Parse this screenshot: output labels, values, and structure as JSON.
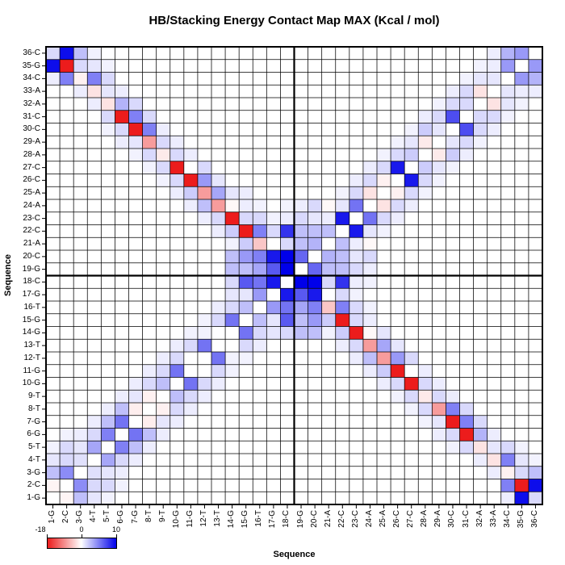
{
  "title": "HB/Stacking Energy Contact Map MAX (Kcal / mol)",
  "x_axis": {
    "label": "Sequence"
  },
  "y_axis": {
    "label": "Sequence"
  },
  "colorbar": {
    "tick_labels": [
      "-18",
      "0",
      "10"
    ],
    "negative_color": "#ec1c1c",
    "positive_color": "#0000ea"
  },
  "chart_data": {
    "type": "heatmap",
    "title": "HB/Stacking Energy Contact Map MAX (Kcal / mol)",
    "xlabel": "Sequence",
    "ylabel": "Sequence",
    "value_range": [
      -18,
      10
    ],
    "legend_position": "bottom-left",
    "grid": true,
    "crosshair_between_positions": [
      18,
      19
    ],
    "x_categories": [
      "1-G",
      "2-C",
      "3-G",
      "4-T",
      "5-T",
      "6-G",
      "7-G",
      "8-T",
      "9-T",
      "10-G",
      "11-G",
      "12-T",
      "13-T",
      "14-G",
      "15-G",
      "16-T",
      "17-G",
      "18-C",
      "19-G",
      "20-C",
      "21-A",
      "22-C",
      "23-C",
      "24-A",
      "25-A",
      "26-C",
      "27-C",
      "28-A",
      "29-A",
      "30-C",
      "31-C",
      "32-A",
      "33-A",
      "34-C",
      "35-G",
      "36-C"
    ],
    "y_categories": [
      "1-G",
      "2-C",
      "3-G",
      "4-T",
      "5-T",
      "6-G",
      "7-G",
      "8-T",
      "9-T",
      "10-G",
      "11-G",
      "12-T",
      "13-T",
      "14-G",
      "15-G",
      "16-T",
      "17-G",
      "18-C",
      "19-G",
      "20-C",
      "21-A",
      "22-C",
      "23-C",
      "24-A",
      "25-A",
      "26-C",
      "27-C",
      "28-A",
      "29-A",
      "30-C",
      "31-C",
      "32-A",
      "33-A",
      "34-C",
      "35-G",
      "36-C"
    ],
    "matrix_rows_position_1_to_36": [
      [
        0,
        -0.7,
        2.5,
        1,
        0.5,
        0,
        0,
        0,
        0,
        0,
        0,
        0,
        0,
        0,
        0,
        0,
        0,
        0,
        0,
        0,
        0,
        0,
        0,
        0,
        0,
        0,
        0,
        0,
        0,
        0,
        0,
        0,
        0,
        0.7,
        9.5,
        1.5
      ],
      [
        -0.7,
        0,
        4.5,
        1.5,
        1.5,
        0.5,
        0,
        0,
        0,
        0,
        0,
        0,
        0,
        0,
        0,
        0,
        0,
        0,
        0,
        0,
        0,
        0,
        0,
        0,
        0,
        0,
        0,
        0,
        0,
        0,
        0,
        0,
        0,
        5,
        -16,
        9.5
      ],
      [
        2.5,
        4.5,
        0,
        1.2,
        1,
        0.7,
        0,
        0,
        0,
        0,
        0,
        0,
        0,
        0,
        0,
        0,
        0,
        0,
        0,
        0,
        0,
        0,
        0,
        0,
        0,
        0,
        0,
        0,
        0,
        0,
        0,
        0,
        0.7,
        -1,
        1.5,
        2.5
      ],
      [
        1,
        1.5,
        1.2,
        0,
        3.5,
        1.5,
        0.7,
        0,
        0,
        0,
        0,
        0,
        0,
        0,
        0,
        0,
        0,
        0,
        0,
        0,
        0,
        0,
        0,
        0,
        0,
        0,
        0,
        0,
        0,
        0,
        0,
        0.7,
        -2,
        5,
        1,
        0.5
      ],
      [
        0.5,
        1.5,
        1,
        3.5,
        0,
        5,
        2.5,
        0.7,
        0,
        0,
        0,
        0,
        0,
        0,
        0,
        0,
        0,
        0,
        0,
        0,
        0,
        0,
        0,
        0,
        0,
        0,
        0,
        0,
        0,
        0.5,
        1.5,
        -2,
        1,
        1.5,
        0.5,
        0
      ],
      [
        0,
        0.5,
        0.7,
        1.5,
        5,
        0,
        5.5,
        2.5,
        0.7,
        0,
        0,
        0,
        0,
        0,
        0,
        0,
        0,
        0,
        0,
        0,
        0,
        0,
        0,
        0,
        0,
        0,
        0,
        0,
        0.7,
        1.5,
        -16,
        3,
        0.7,
        0,
        0,
        0
      ],
      [
        0,
        0,
        0,
        0.7,
        2.5,
        5.5,
        0,
        -1.2,
        1,
        0.7,
        0,
        0,
        0,
        0,
        0,
        0,
        0,
        0,
        0,
        0,
        0,
        0,
        0,
        0,
        0,
        0,
        0,
        0.5,
        1,
        -16,
        5,
        1.5,
        0,
        0,
        0,
        0
      ],
      [
        0,
        0,
        0,
        0,
        0.7,
        2.5,
        -1.2,
        0,
        -1,
        1.5,
        0.7,
        0,
        0,
        0,
        0,
        0,
        0,
        0,
        0,
        0,
        0,
        0,
        0,
        0,
        0,
        0,
        0.5,
        1.5,
        -7,
        5,
        1.5,
        0,
        0,
        0,
        0,
        0
      ],
      [
        0,
        0,
        0,
        0,
        0,
        0.7,
        1,
        -1,
        0,
        2.5,
        1.5,
        0.7,
        0,
        0,
        0,
        0,
        0,
        0,
        0,
        0,
        0,
        0,
        0,
        0,
        0,
        0.5,
        1.5,
        -1.5,
        1.5,
        0.7,
        0,
        0,
        0,
        0,
        0,
        0
      ],
      [
        0,
        0,
        0,
        0,
        0,
        0,
        0.7,
        1.5,
        2.5,
        0,
        5.5,
        1.5,
        0.7,
        0,
        0,
        0,
        0,
        0,
        0,
        0,
        0,
        0,
        0,
        0,
        0.7,
        1.5,
        -16,
        1.5,
        0.7,
        0,
        0,
        0,
        0,
        0,
        0,
        0
      ],
      [
        0,
        0,
        0,
        0,
        0,
        0,
        0,
        0.7,
        1.5,
        5.5,
        0,
        0,
        1.5,
        0.5,
        0,
        0,
        0,
        0,
        0,
        0,
        0,
        0,
        0,
        0.7,
        2,
        -16,
        0,
        0.7,
        0,
        0,
        0,
        0,
        0,
        0,
        0,
        0
      ],
      [
        0,
        0,
        0,
        0,
        0,
        0,
        0,
        0,
        0.7,
        1.5,
        0,
        0,
        5.5,
        0.5,
        0.5,
        0,
        0,
        0,
        0,
        0,
        0,
        0,
        0.7,
        2.5,
        -7,
        4,
        1.5,
        0,
        0,
        0,
        0,
        0,
        0,
        0,
        0,
        0
      ],
      [
        0,
        0,
        0,
        0,
        0,
        0,
        0,
        0,
        0,
        0.7,
        1.5,
        5.5,
        0,
        0,
        1.5,
        0.7,
        0,
        0,
        0,
        0,
        0,
        0.7,
        1.5,
        -7,
        3.5,
        1,
        0,
        0,
        0,
        0,
        0,
        0,
        0,
        0,
        0,
        0
      ],
      [
        0,
        0,
        0,
        0,
        0,
        0,
        0,
        0,
        0,
        0,
        0.5,
        0.5,
        0,
        0,
        5.5,
        1.5,
        1,
        1.5,
        2.5,
        2.5,
        0.5,
        2,
        -16,
        -0.5,
        1,
        0,
        0,
        0,
        0,
        0,
        0,
        0,
        0,
        0,
        0,
        0
      ],
      [
        0,
        0,
        0,
        0,
        0,
        0,
        0,
        0,
        0,
        0,
        0,
        0.5,
        1.5,
        5.5,
        0,
        2.5,
        1,
        6.5,
        2.5,
        4,
        2,
        -16,
        1.5,
        0.7,
        0,
        0,
        0,
        0,
        0,
        0,
        0,
        0,
        0,
        0,
        0,
        0
      ],
      [
        0,
        0,
        0,
        0,
        0,
        0,
        0,
        0,
        0,
        0,
        0,
        0,
        0.7,
        1.5,
        2.5,
        0,
        4,
        5.5,
        3.5,
        5,
        -4,
        5,
        1.5,
        0.5,
        0,
        0,
        0,
        0,
        0,
        0,
        0,
        0,
        0,
        0,
        0,
        0
      ],
      [
        0,
        0,
        0,
        0,
        0,
        0,
        0,
        0,
        0,
        0,
        0,
        0,
        0,
        1,
        1,
        4,
        0,
        9,
        6.5,
        9,
        0,
        1.5,
        0.5,
        0,
        0,
        0,
        0,
        0,
        0,
        0,
        0,
        0,
        0,
        0,
        0,
        0
      ],
      [
        0,
        0,
        0,
        0,
        0,
        0,
        0,
        0,
        0,
        0,
        0,
        0,
        0,
        1.5,
        6.5,
        5.5,
        9,
        0,
        10,
        10,
        1.5,
        8,
        0.7,
        0.5,
        0,
        0,
        0,
        0,
        0,
        0,
        0,
        0,
        0,
        0,
        0,
        0
      ],
      [
        0,
        0,
        0,
        0,
        0,
        0,
        0,
        0,
        0,
        0,
        0,
        0,
        0,
        2.5,
        2.5,
        3.5,
        6.5,
        10,
        0,
        6,
        2.5,
        2.5,
        1.5,
        0.7,
        0,
        0,
        0,
        0,
        0,
        0,
        0,
        0,
        0,
        0,
        0,
        0
      ],
      [
        0,
        0,
        0,
        0,
        0,
        0,
        0,
        0,
        0,
        0,
        0,
        0,
        0,
        2.5,
        4,
        5,
        9,
        10,
        6,
        0,
        3,
        2.5,
        1,
        1.5,
        0,
        0,
        0,
        0,
        0,
        0,
        0,
        0,
        0,
        0,
        0,
        0
      ],
      [
        0,
        0,
        0,
        0,
        0,
        0,
        0,
        0,
        0,
        0,
        0,
        0,
        0,
        0.5,
        2,
        -4,
        0,
        1.5,
        2.5,
        3,
        0,
        2.5,
        0.7,
        -0.5,
        0,
        0,
        0,
        0,
        0,
        0,
        0,
        0,
        0,
        0,
        0,
        0
      ],
      [
        0,
        0,
        0,
        0,
        0,
        0,
        0,
        0,
        0,
        0,
        0,
        0,
        0.7,
        2,
        -16,
        5,
        1.5,
        8,
        2.5,
        2.5,
        2.5,
        0,
        9,
        1,
        0.5,
        0,
        0,
        0,
        0,
        0,
        0,
        0,
        0,
        0,
        0,
        0
      ],
      [
        0,
        0,
        0,
        0,
        0,
        0,
        0,
        0,
        0,
        0,
        0,
        0.7,
        1.5,
        -16,
        1.5,
        1.5,
        0.5,
        0.7,
        1.5,
        1,
        0.7,
        9,
        0,
        5.5,
        1.5,
        0.7,
        0,
        0,
        0,
        0,
        0,
        0,
        0,
        0,
        0,
        0
      ],
      [
        0,
        0,
        0,
        0,
        0,
        0,
        0,
        0,
        0,
        0,
        0.7,
        2.5,
        -7,
        -0.5,
        0.7,
        0.5,
        0,
        0.5,
        0.7,
        1.5,
        -0.5,
        1,
        5.5,
        0,
        -2,
        1.5,
        0.7,
        0,
        0,
        0,
        0,
        0,
        0,
        0,
        0,
        0
      ],
      [
        0,
        0,
        0,
        0,
        0,
        0,
        0,
        0,
        0,
        0.7,
        2,
        -7,
        3.5,
        1,
        0.7,
        0,
        0,
        0,
        0,
        0,
        0,
        0.5,
        1.5,
        -2,
        0,
        -1,
        1.5,
        0.5,
        0,
        0,
        0,
        0,
        0,
        0,
        0,
        0
      ],
      [
        0,
        0,
        0,
        0,
        0,
        0,
        0,
        0,
        0.5,
        1.5,
        -16,
        4,
        1,
        0,
        0,
        0,
        0,
        0,
        0,
        0,
        0,
        0,
        0.7,
        1.5,
        -1,
        0,
        9,
        1.5,
        0.5,
        0,
        0,
        0,
        0,
        0,
        0,
        0
      ],
      [
        0,
        0,
        0,
        0,
        0,
        0,
        0,
        0.5,
        1.5,
        -16,
        0,
        1.5,
        0,
        0,
        0,
        0,
        0,
        0,
        0,
        0,
        0,
        0,
        0,
        0.7,
        1.5,
        9,
        0,
        2,
        1,
        0.5,
        0,
        0,
        0,
        0,
        0,
        0
      ],
      [
        0,
        0,
        0,
        0,
        0,
        0,
        0.5,
        1.5,
        -1.5,
        1.5,
        0.7,
        0,
        0,
        0,
        0,
        0,
        0,
        0,
        0,
        0,
        0,
        0,
        0,
        0,
        0.5,
        1.5,
        2,
        0,
        -1.5,
        2,
        0.7,
        0,
        0,
        0,
        0,
        0
      ],
      [
        0,
        0,
        0,
        0,
        0,
        0.7,
        1,
        -7,
        1.5,
        0.7,
        0,
        0,
        0,
        0,
        0,
        0,
        0,
        0,
        0,
        0,
        0,
        0,
        0,
        0,
        0,
        0.5,
        1,
        -1.5,
        0,
        1,
        1.5,
        0.5,
        0,
        0,
        0,
        0
      ],
      [
        0,
        0,
        0,
        0,
        0.5,
        1.5,
        -16,
        5,
        0.7,
        0,
        0,
        0,
        0,
        0,
        0,
        0,
        0,
        0,
        0,
        0,
        0,
        0,
        0,
        0,
        0,
        0,
        0.5,
        2,
        1,
        0,
        7,
        1.5,
        0.7,
        0,
        0,
        0
      ],
      [
        0,
        0,
        0,
        0,
        1.5,
        -16,
        5,
        1.5,
        0,
        0,
        0,
        0,
        0,
        0,
        0,
        0,
        0,
        0,
        0,
        0,
        0,
        0,
        0,
        0,
        0,
        0,
        0,
        0.7,
        1.5,
        7,
        0,
        1.5,
        1.5,
        0.5,
        0,
        0
      ],
      [
        0,
        0,
        0,
        0.7,
        -2,
        3,
        1.5,
        0,
        0,
        0,
        0,
        0,
        0,
        0,
        0,
        0,
        0,
        0,
        0,
        0,
        0,
        0,
        0,
        0,
        0,
        0,
        0,
        0,
        0.5,
        1.5,
        1.5,
        0,
        -2,
        1,
        0.5,
        0
      ],
      [
        0,
        0,
        0.7,
        -2,
        1,
        0.7,
        0,
        0,
        0,
        0,
        0,
        0,
        0,
        0,
        0,
        0,
        0,
        0,
        0,
        0,
        0,
        0,
        0,
        0,
        0,
        0,
        0,
        0,
        0,
        0.7,
        1.5,
        -2,
        0,
        1,
        0.7,
        0.7
      ],
      [
        0.7,
        5,
        -1,
        5,
        1.5,
        0,
        0,
        0,
        0,
        0,
        0,
        0,
        0,
        0,
        0,
        0,
        0,
        0,
        0,
        0,
        0,
        0,
        0,
        0,
        0,
        0,
        0,
        0,
        0,
        0,
        0.5,
        1,
        1,
        0,
        4,
        3
      ],
      [
        9.5,
        -16,
        1.5,
        1,
        0.5,
        0,
        0,
        0,
        0,
        0,
        0,
        0,
        0,
        0,
        0,
        0,
        0,
        0,
        0,
        0,
        0,
        0,
        0,
        0,
        0,
        0,
        0,
        0,
        0,
        0,
        0,
        0.5,
        0.7,
        4,
        0,
        4
      ],
      [
        1.5,
        9.5,
        2.5,
        0.5,
        0,
        0,
        0,
        0,
        0,
        0,
        0,
        0,
        0,
        0,
        0,
        0,
        0,
        0,
        0,
        0,
        0,
        0,
        0,
        0,
        0,
        0,
        0,
        0,
        0,
        0,
        0,
        0,
        0.7,
        3,
        4,
        0
      ]
    ]
  }
}
